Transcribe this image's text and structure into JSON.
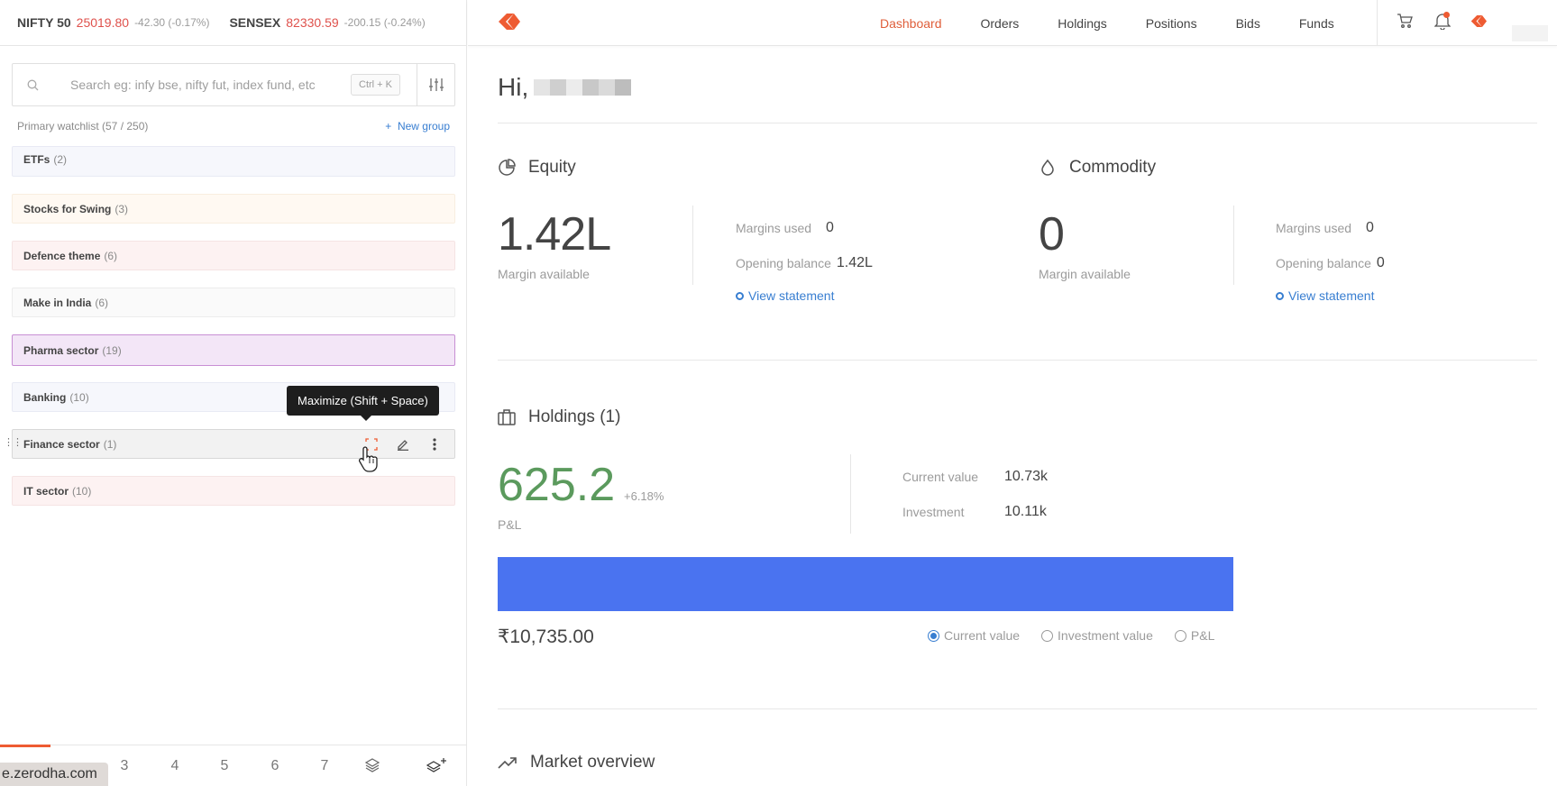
{
  "ticker": {
    "nifty": {
      "name": "NIFTY 50",
      "value": "25019.80",
      "change": "-42.30 (-0.17%)"
    },
    "sensex": {
      "name": "SENSEX",
      "value": "82330.59",
      "change": "-200.15 (-0.24%)"
    }
  },
  "search": {
    "placeholder": "Search eg: infy bse, nifty fut, index fund, etc",
    "shortcut": "Ctrl + K"
  },
  "watchlist": {
    "title": "Primary watchlist  (57 / 250)",
    "new_group": "New group",
    "groups": [
      {
        "name": "ETFs",
        "count": "(2)"
      },
      {
        "name": "Stocks for Swing",
        "count": "(3)"
      },
      {
        "name": "Defence theme",
        "count": "(6)"
      },
      {
        "name": "Make in India",
        "count": "(6)"
      },
      {
        "name": "Pharma sector",
        "count": "(19)"
      },
      {
        "name": "Banking",
        "count": "(10)"
      },
      {
        "name": "Finance sector",
        "count": "(1)"
      },
      {
        "name": "IT sector",
        "count": "(10)"
      }
    ],
    "tooltip": "Maximize (Shift + Space)"
  },
  "pager": {
    "pages": [
      "3",
      "4",
      "5",
      "6",
      "7"
    ]
  },
  "status_url": "e.zerodha.com",
  "nav": {
    "items": [
      "Dashboard",
      "Orders",
      "Holdings",
      "Positions",
      "Bids",
      "Funds"
    ],
    "active": "Dashboard"
  },
  "greeting": "Hi,",
  "equity": {
    "title": "Equity",
    "margin_available": "1.42L",
    "margin_available_label": "Margin available",
    "margins_used_label": "Margins used",
    "margins_used": "0",
    "opening_balance_label": "Opening balance",
    "opening_balance": "1.42L",
    "view_statement": "View statement"
  },
  "commodity": {
    "title": "Commodity",
    "margin_available": "0",
    "margin_available_label": "Margin available",
    "margins_used_label": "Margins used",
    "margins_used": "0",
    "opening_balance_label": "Opening balance",
    "opening_balance": "0",
    "view_statement": "View statement"
  },
  "holdings": {
    "title": "Holdings (1)",
    "pnl": "625.2",
    "pnl_pct": "+6.18%",
    "pnl_label": "P&L",
    "current_value_label": "Current value",
    "current_value": "10.73k",
    "investment_label": "Investment",
    "investment": "10.11k",
    "bar_value": "₹10,735.00",
    "radios": [
      "Current value",
      "Investment value",
      "P&L"
    ],
    "selected_radio": "Current value"
  },
  "market_overview": {
    "title": "Market overview"
  },
  "colors": {
    "brand": "#ee5b32",
    "link": "#387ed1",
    "profit": "#5b9a5d",
    "bar": "#4a73f0"
  }
}
